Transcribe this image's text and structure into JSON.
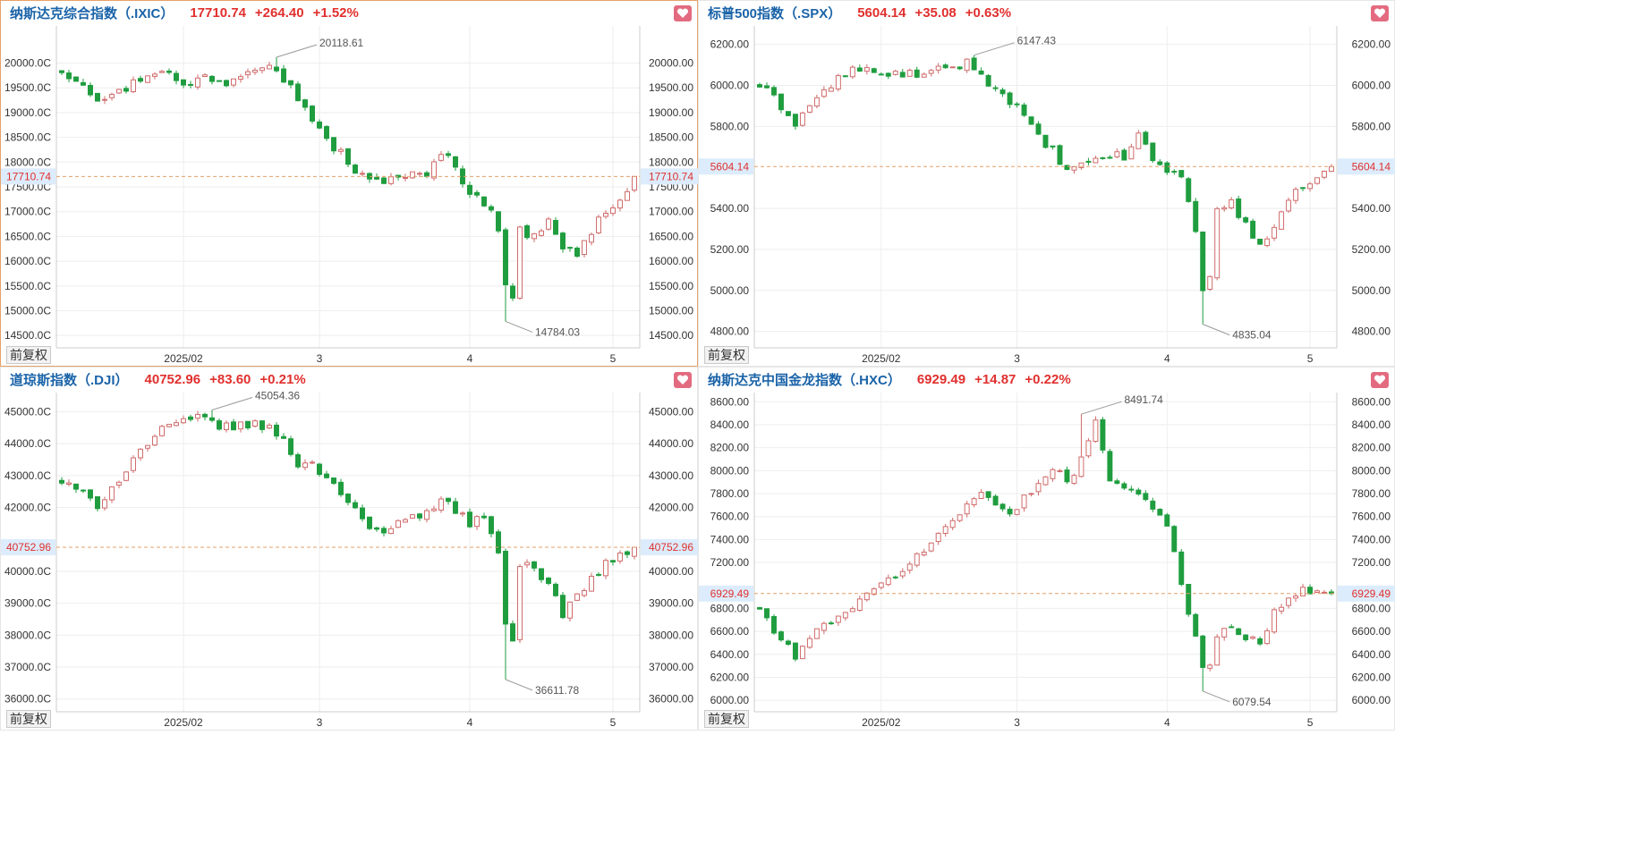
{
  "panels": [
    {
      "id": "ixic",
      "name": "纳斯达克综合指数（.IXIC）",
      "price": "17710.74",
      "change": "+264.40",
      "pct": "+1.52%",
      "fav_icon": "heart-icon",
      "adjust_label": "前复权",
      "current_label": "17710.74",
      "active": true,
      "y_range": [
        14250,
        20750
      ],
      "y_ticks": [
        {
          "v": 20000,
          "label": "20000.0C",
          "rlabel": "20000.00"
        },
        {
          "v": 19500,
          "label": "19500.0C",
          "rlabel": "19500.00"
        },
        {
          "v": 19000,
          "label": "19000.0C",
          "rlabel": "19000.00"
        },
        {
          "v": 18500,
          "label": "18500.0C",
          "rlabel": "18500.00"
        },
        {
          "v": 18000,
          "label": "18000.0C",
          "rlabel": "18000.00"
        },
        {
          "v": 17500,
          "label": "17500.0C",
          "rlabel": "17500.00"
        },
        {
          "v": 17000,
          "label": "17000.0C",
          "rlabel": "17000.00"
        },
        {
          "v": 16500,
          "label": "16500.0C",
          "rlabel": "16500.00"
        },
        {
          "v": 16000,
          "label": "16000.0C",
          "rlabel": "16000.00"
        },
        {
          "v": 15500,
          "label": "15500.0C",
          "rlabel": "15500.00"
        },
        {
          "v": 15000,
          "label": "15000.0C",
          "rlabel": "15000.00"
        },
        {
          "v": 14500,
          "label": "14500.0C",
          "rlabel": "14500.00"
        }
      ],
      "x_ticks": [
        {
          "i": 17,
          "label": "2025/02"
        },
        {
          "i": 36,
          "label": "3"
        },
        {
          "i": 57,
          "label": "4"
        },
        {
          "i": 77,
          "label": "5"
        }
      ],
      "max_label": "20118.61",
      "min_label": "14784.03",
      "current": 17710.74,
      "anchors": [
        [
          0,
          19850
        ],
        [
          3,
          19600
        ],
        [
          5,
          19300
        ],
        [
          8,
          19400
        ],
        [
          11,
          19700
        ],
        [
          14,
          19900
        ],
        [
          17,
          19500
        ],
        [
          20,
          19750
        ],
        [
          23,
          19600
        ],
        [
          26,
          19900
        ],
        [
          29,
          20050
        ],
        [
          31,
          19700
        ],
        [
          33,
          19300
        ],
        [
          35,
          18900
        ],
        [
          37,
          18400
        ],
        [
          39,
          18200
        ],
        [
          41,
          17800
        ],
        [
          43,
          17600
        ],
        [
          45,
          17650
        ],
        [
          48,
          17750
        ],
        [
          51,
          17700
        ],
        [
          53,
          18200
        ],
        [
          55,
          17900
        ],
        [
          57,
          17400
        ],
        [
          59,
          17200
        ],
        [
          61,
          16700
        ],
        [
          62,
          15600
        ],
        [
          63,
          15250
        ],
        [
          64,
          16600
        ],
        [
          66,
          16500
        ],
        [
          68,
          16900
        ],
        [
          70,
          16300
        ],
        [
          72,
          16100
        ],
        [
          74,
          16600
        ],
        [
          76,
          17050
        ],
        [
          78,
          17200
        ],
        [
          80,
          17710.74
        ]
      ],
      "extremes": [
        [
          30,
          20118.61
        ],
        [
          62,
          14784.03
        ]
      ]
    },
    {
      "id": "spx",
      "name": "标普500指数（.SPX）",
      "price": "5604.14",
      "change": "+35.08",
      "pct": "+0.63%",
      "fav_icon": "heart-icon",
      "adjust_label": "前复权",
      "current_label": "5604.14",
      "active": false,
      "y_range": [
        4720,
        6290
      ],
      "y_ticks": [
        {
          "v": 6200,
          "label": "6200.00",
          "rlabel": "6200.00"
        },
        {
          "v": 6000,
          "label": "6000.00",
          "rlabel": "6000.00"
        },
        {
          "v": 5800,
          "label": "5800.00",
          "rlabel": "5800.00"
        },
        {
          "v": 5400,
          "label": "5400.00",
          "rlabel": "5400.00"
        },
        {
          "v": 5200,
          "label": "5200.00",
          "rlabel": "5200.00"
        },
        {
          "v": 5000,
          "label": "5000.00",
          "rlabel": "5000.00"
        },
        {
          "v": 4800,
          "label": "4800.00",
          "rlabel": "4800.00"
        }
      ],
      "x_ticks": [
        {
          "i": 17,
          "label": "2025/02"
        },
        {
          "i": 36,
          "label": "3"
        },
        {
          "i": 57,
          "label": "4"
        },
        {
          "i": 77,
          "label": "5"
        }
      ],
      "max_label": "6147.43",
      "min_label": "4835.04",
      "current": 5604.14,
      "anchors": [
        [
          0,
          6000
        ],
        [
          3,
          5900
        ],
        [
          5,
          5820
        ],
        [
          8,
          5940
        ],
        [
          11,
          6030
        ],
        [
          14,
          6090
        ],
        [
          17,
          6040
        ],
        [
          20,
          6060
        ],
        [
          23,
          6050
        ],
        [
          26,
          6080
        ],
        [
          29,
          6110
        ],
        [
          31,
          6060
        ],
        [
          33,
          5980
        ],
        [
          35,
          5930
        ],
        [
          37,
          5850
        ],
        [
          39,
          5740
        ],
        [
          41,
          5680
        ],
        [
          43,
          5580
        ],
        [
          45,
          5600
        ],
        [
          48,
          5660
        ],
        [
          51,
          5650
        ],
        [
          53,
          5760
        ],
        [
          55,
          5640
        ],
        [
          57,
          5590
        ],
        [
          59,
          5550
        ],
        [
          61,
          5300
        ],
        [
          62,
          5020
        ],
        [
          63,
          5050
        ],
        [
          64,
          5400
        ],
        [
          66,
          5420
        ],
        [
          68,
          5330
        ],
        [
          70,
          5220
        ],
        [
          72,
          5300
        ],
        [
          74,
          5420
        ],
        [
          76,
          5520
        ],
        [
          78,
          5540
        ],
        [
          80,
          5604.14
        ]
      ],
      "extremes": [
        [
          30,
          6147.43
        ],
        [
          62,
          4835.04
        ]
      ]
    },
    {
      "id": "dji",
      "name": "道琼斯指数（.DJI）",
      "price": "40752.96",
      "change": "+83.60",
      "pct": "+0.21%",
      "fav_icon": "heart-icon",
      "adjust_label": "前复权",
      "current_label": "40752.96",
      "active": false,
      "y_range": [
        35600,
        45600
      ],
      "y_ticks": [
        {
          "v": 45000,
          "label": "45000.0C",
          "rlabel": "45000.00"
        },
        {
          "v": 44000,
          "label": "44000.0C",
          "rlabel": "44000.00"
        },
        {
          "v": 43000,
          "label": "43000.0C",
          "rlabel": "43000.00"
        },
        {
          "v": 42000,
          "label": "42000.0C",
          "rlabel": "42000.00"
        },
        {
          "v": 40000,
          "label": "40000.0C",
          "rlabel": "40000.00"
        },
        {
          "v": 39000,
          "label": "39000.0C",
          "rlabel": "39000.00"
        },
        {
          "v": 38000,
          "label": "38000.0C",
          "rlabel": "38000.00"
        },
        {
          "v": 37000,
          "label": "37000.0C",
          "rlabel": "37000.00"
        },
        {
          "v": 36000,
          "label": "36000.0C",
          "rlabel": "36000.00"
        }
      ],
      "x_ticks": [
        {
          "i": 17,
          "label": "2025/02"
        },
        {
          "i": 36,
          "label": "3"
        },
        {
          "i": 57,
          "label": "4"
        },
        {
          "i": 77,
          "label": "5"
        }
      ],
      "max_label": "45054.36",
      "min_label": "36611.78",
      "current": 40752.96,
      "anchors": [
        [
          0,
          42800
        ],
        [
          3,
          42400
        ],
        [
          5,
          42100
        ],
        [
          8,
          42900
        ],
        [
          11,
          43800
        ],
        [
          14,
          44400
        ],
        [
          17,
          44700
        ],
        [
          20,
          44800
        ],
        [
          23,
          44500
        ],
        [
          26,
          44600
        ],
        [
          29,
          44500
        ],
        [
          31,
          44100
        ],
        [
          33,
          43400
        ],
        [
          35,
          43300
        ],
        [
          37,
          43000
        ],
        [
          39,
          42500
        ],
        [
          41,
          42000
        ],
        [
          43,
          41300
        ],
        [
          45,
          41100
        ],
        [
          48,
          41700
        ],
        [
          51,
          41800
        ],
        [
          53,
          42400
        ],
        [
          55,
          41900
        ],
        [
          57,
          41500
        ],
        [
          59,
          41800
        ],
        [
          61,
          40600
        ],
        [
          62,
          38200
        ],
        [
          63,
          37900
        ],
        [
          64,
          40300
        ],
        [
          66,
          40200
        ],
        [
          68,
          39500
        ],
        [
          70,
          38700
        ],
        [
          72,
          39200
        ],
        [
          74,
          39800
        ],
        [
          76,
          40200
        ],
        [
          78,
          40500
        ],
        [
          80,
          40752.96
        ]
      ],
      "extremes": [
        [
          21,
          45054.36
        ],
        [
          62,
          36611.78
        ]
      ]
    },
    {
      "id": "hxc",
      "name": "纳斯达克中国金龙指数（.HXC）",
      "price": "6929.49",
      "change": "+14.87",
      "pct": "+0.22%",
      "fav_icon": "heart-icon",
      "adjust_label": "前复权",
      "current_label": "6929.49",
      "active": false,
      "y_range": [
        5900,
        8680
      ],
      "y_ticks": [
        {
          "v": 8600,
          "label": "8600.00",
          "rlabel": "8600.00"
        },
        {
          "v": 8400,
          "label": "8400.00",
          "rlabel": "8400.00"
        },
        {
          "v": 8200,
          "label": "8200.00",
          "rlabel": "8200.00"
        },
        {
          "v": 8000,
          "label": "8000.00",
          "rlabel": "8000.00"
        },
        {
          "v": 7800,
          "label": "7800.00",
          "rlabel": "7800.00"
        },
        {
          "v": 7600,
          "label": "7600.00",
          "rlabel": "7600.00"
        },
        {
          "v": 7400,
          "label": "7400.00",
          "rlabel": "7400.00"
        },
        {
          "v": 7200,
          "label": "7200.00",
          "rlabel": "7200.00"
        },
        {
          "v": 6800,
          "label": "6800.00",
          "rlabel": "6800.00"
        },
        {
          "v": 6600,
          "label": "6600.00",
          "rlabel": "6600.00"
        },
        {
          "v": 6400,
          "label": "6400.00",
          "rlabel": "6400.00"
        },
        {
          "v": 6200,
          "label": "6200.00",
          "rlabel": "6200.00"
        },
        {
          "v": 6000,
          "label": "6000.00",
          "rlabel": "6000.00"
        }
      ],
      "x_ticks": [
        {
          "i": 17,
          "label": "2025/02"
        },
        {
          "i": 36,
          "label": "3"
        },
        {
          "i": 57,
          "label": "4"
        },
        {
          "i": 77,
          "label": "5"
        }
      ],
      "max_label": "8491.74",
      "min_label": "6079.54",
      "current": 6929.49,
      "anchors": [
        [
          0,
          6800
        ],
        [
          3,
          6500
        ],
        [
          5,
          6400
        ],
        [
          8,
          6600
        ],
        [
          11,
          6750
        ],
        [
          14,
          6850
        ],
        [
          17,
          7000
        ],
        [
          20,
          7150
        ],
        [
          23,
          7300
        ],
        [
          26,
          7500
        ],
        [
          29,
          7700
        ],
        [
          31,
          7850
        ],
        [
          33,
          7700
        ],
        [
          35,
          7600
        ],
        [
          37,
          7750
        ],
        [
          39,
          7900
        ],
        [
          41,
          8050
        ],
        [
          43,
          7900
        ],
        [
          45,
          8100
        ],
        [
          47,
          8400
        ],
        [
          48,
          8200
        ],
        [
          49,
          7950
        ],
        [
          51,
          7850
        ],
        [
          53,
          7800
        ],
        [
          55,
          7700
        ],
        [
          57,
          7550
        ],
        [
          59,
          7000
        ],
        [
          61,
          6550
        ],
        [
          62,
          6250
        ],
        [
          63,
          6300
        ],
        [
          64,
          6550
        ],
        [
          66,
          6650
        ],
        [
          68,
          6550
        ],
        [
          70,
          6500
        ],
        [
          72,
          6750
        ],
        [
          74,
          6900
        ],
        [
          76,
          6950
        ],
        [
          78,
          6930
        ],
        [
          80,
          6929.49
        ]
      ],
      "extremes": [
        [
          45,
          8491.74
        ],
        [
          62,
          6079.54
        ]
      ]
    }
  ],
  "colors": {
    "up": "#d06b6b",
    "down": "#1f9d3f",
    "grid": "#eeeeee",
    "axis": "#cccccc",
    "label": "#333333",
    "title": "#1a63a8",
    "change": "#e0302e",
    "current_line": "#e3a06a",
    "current_box": "#dcecfc",
    "current_text": "#e0302e",
    "fav_bg": "#e36b80"
  }
}
